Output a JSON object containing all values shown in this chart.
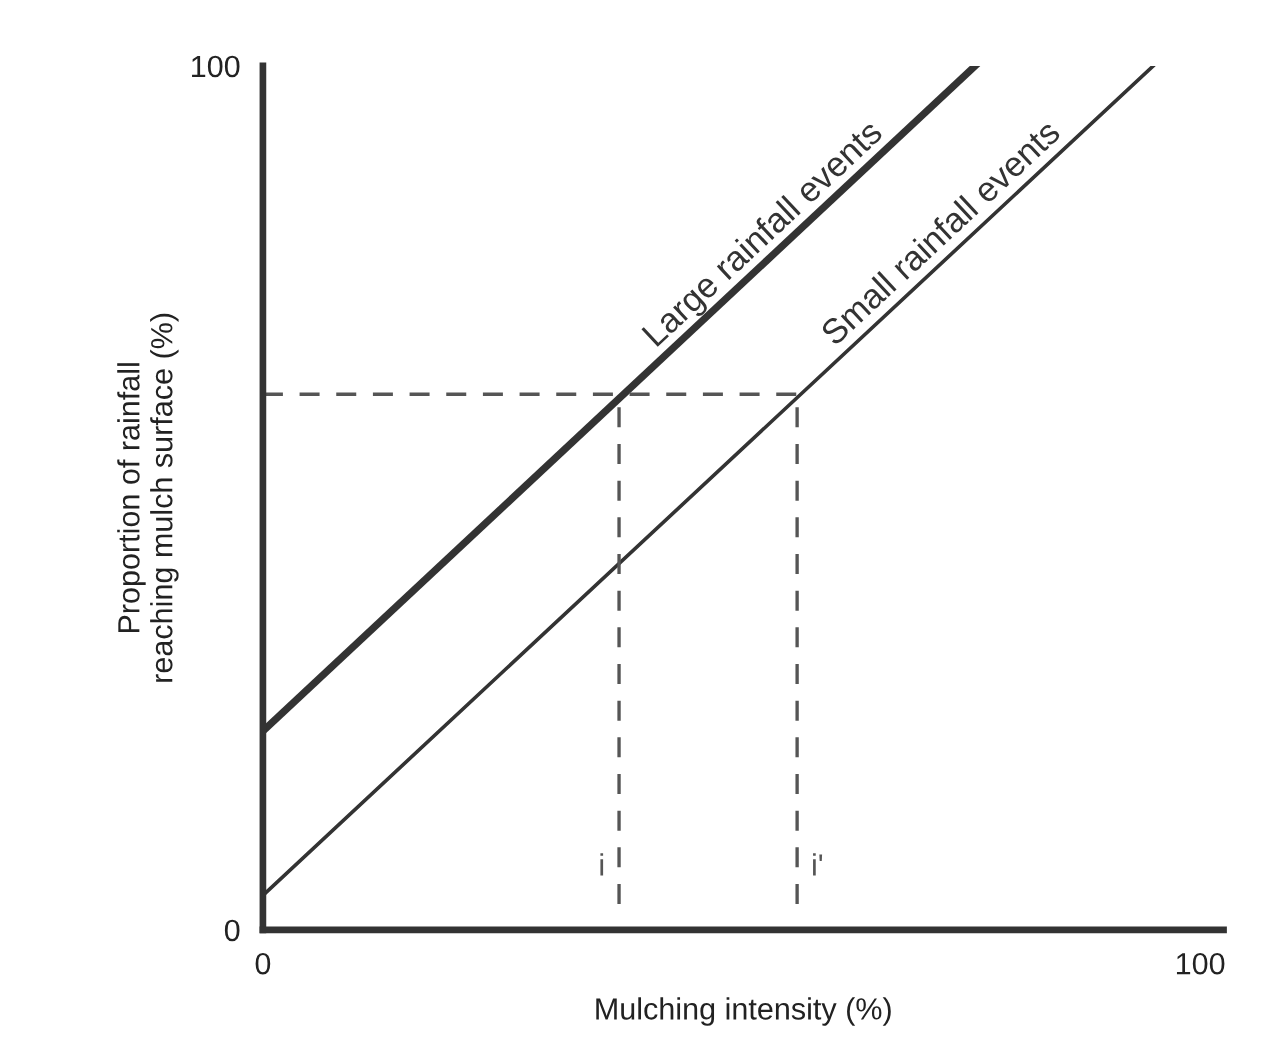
{
  "chart_data": {
    "type": "line",
    "xlabel": "Mulching intensity (%)",
    "ylabel": "Proportion of rainfall\nreaching mulch surface (%)",
    "xlim": [
      0,
      102.5
    ],
    "ylim": [
      0,
      100
    ],
    "xticks": [
      0,
      100
    ],
    "yticks": [
      0,
      100
    ],
    "grid": false,
    "marker": "none",
    "series": [
      {
        "name": "Large rainfall events",
        "x": [
          0,
          76
        ],
        "values": [
          23,
          100
        ],
        "color": "#333333",
        "line_style": "solid"
      },
      {
        "name": "Small rainfall events",
        "x": [
          0,
          95
        ],
        "values": [
          4,
          100
        ],
        "color": "#333333",
        "line_style": "solid"
      },
      {
        "x": [
          0,
          57
        ],
        "values": [
          62,
          62
        ],
        "color": "#555555",
        "line_style": "dashed"
      },
      {
        "name": "i",
        "x": [
          38,
          38
        ],
        "values": [
          3,
          62
        ],
        "color": "#555555",
        "line_style": "dashed"
      },
      {
        "name": "i'",
        "x": [
          57,
          57
        ],
        "values": [
          3,
          62
        ],
        "color": "#555555",
        "line_style": "dashed"
      }
    ]
  }
}
